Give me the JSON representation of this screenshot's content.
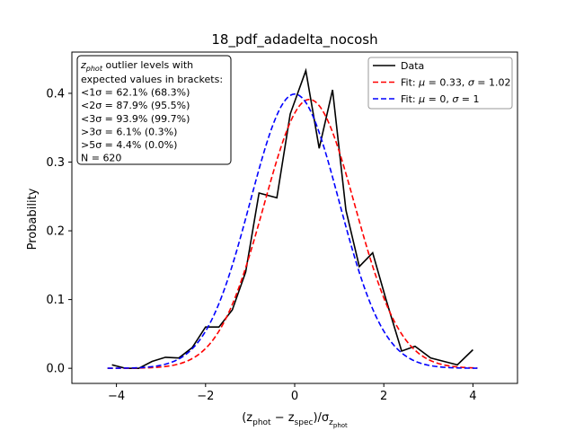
{
  "chart_data": {
    "type": "line",
    "title": "18_pdf_adadelta_nocosh",
    "xlabel": "(z_phot − z_spec)/σ_z_phot",
    "ylabel": "Probability",
    "xlim": [
      -5,
      5
    ],
    "ylim": [
      -0.022,
      0.46
    ],
    "x_ticks": [
      -4,
      -2,
      0,
      2,
      4
    ],
    "y_ticks": [
      0.0,
      0.1,
      0.2,
      0.3,
      0.4
    ],
    "x_tick_labels": [
      "−4",
      "−2",
      "0",
      "2",
      "4"
    ],
    "y_tick_labels": [
      "0.0",
      "0.1",
      "0.2",
      "0.3",
      "0.4"
    ],
    "grid": false,
    "legend_position": "top-right",
    "series": [
      {
        "name": "Data",
        "color": "#000000",
        "style": "solid",
        "x": [
          -4.1,
          -3.8,
          -3.5,
          -3.2,
          -2.9,
          -2.6,
          -2.3,
          -2.0,
          -1.7,
          -1.4,
          -1.1,
          -0.8,
          -0.4,
          -0.1,
          0.25,
          0.55,
          0.85,
          1.15,
          1.45,
          1.75,
          2.05,
          2.4,
          2.7,
          3.05,
          3.35,
          3.65,
          4.0
        ],
        "y": [
          0.005,
          0.0,
          0.0,
          0.01,
          0.016,
          0.015,
          0.03,
          0.06,
          0.06,
          0.085,
          0.14,
          0.255,
          0.248,
          0.37,
          0.433,
          0.32,
          0.405,
          0.23,
          0.148,
          0.168,
          0.1,
          0.025,
          0.032,
          0.015,
          0.01,
          0.005,
          0.027
        ]
      },
      {
        "name": "Fit: μ = 0.33, σ = 1.02",
        "label_parts": [
          "Fit: ",
          "μ",
          " = 0.33, ",
          "σ",
          " = 1.02"
        ],
        "color": "#ff0000",
        "style": "dashed",
        "mu": 0.33,
        "sigma": 1.02,
        "x_range": [
          -4.2,
          4.1
        ]
      },
      {
        "name": "Fit: μ = 0, σ = 1",
        "label_parts": [
          "Fit: ",
          "μ",
          " = 0, ",
          "σ",
          " = 1"
        ],
        "color": "#0000ff",
        "style": "dashed",
        "mu": 0,
        "sigma": 1,
        "x_range": [
          -4.2,
          4.1
        ]
      }
    ],
    "annotation": {
      "title_line": "z_phot outlier levels with",
      "title_sym": "z",
      "title_sub": "phot",
      "title_rest": " outlier levels with",
      "lines": [
        " expected values in brackets:",
        "<1σ = 62.1% (68.3%)",
        "<2σ = 87.9% (95.5%)",
        "<3σ = 93.9% (99.7%)",
        ">3σ = 6.1% (0.3%)",
        ">5σ = 4.4% (0.0%)",
        "N = 620"
      ]
    }
  }
}
